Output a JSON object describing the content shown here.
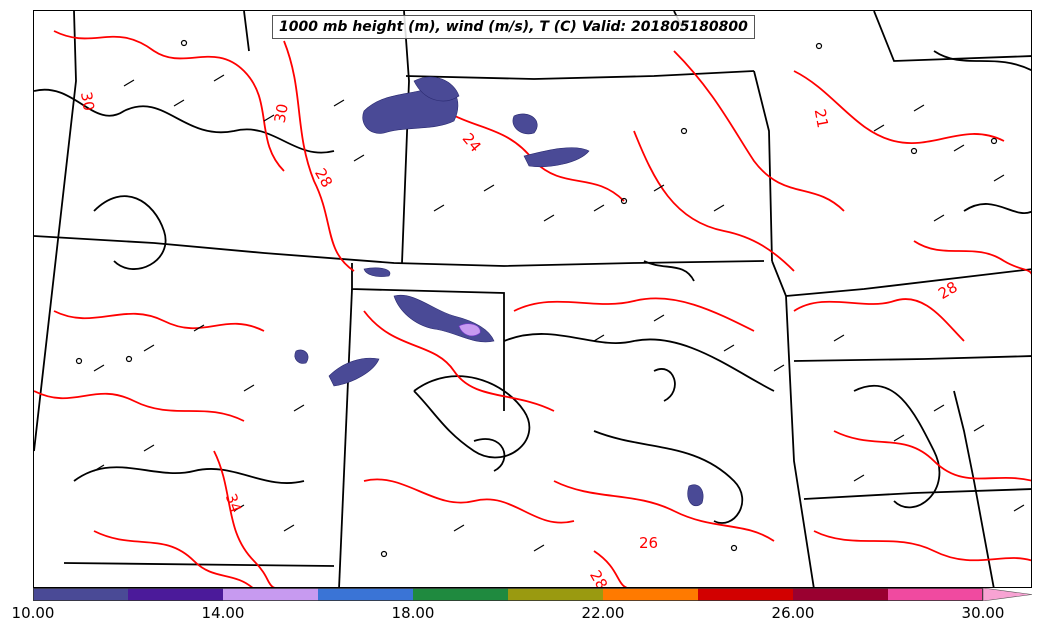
{
  "title": "1000 mb height (m), wind (m/s), T (C) Valid: 201805180800",
  "contour_labels": [
    "30",
    "30",
    "28",
    "24",
    "21",
    "28",
    "34",
    "26",
    "28"
  ],
  "colorbar": {
    "colors": [
      "#4a4a96",
      "#4b1a9a",
      "#c79af0",
      "#3a74d6",
      "#1f8a3f",
      "#9a9a10",
      "#ff7a00",
      "#d20000",
      "#9a0030",
      "#f04aa0",
      "#f7a3d3"
    ],
    "ticks": [
      "10.00",
      "14.00",
      "18.00",
      "22.00",
      "26.00",
      "30.00"
    ],
    "range": [
      10,
      32
    ],
    "bin_width": 2
  },
  "contour_colors": {
    "temperature": "#ff0000",
    "height": "#000000",
    "borders": "#000000"
  }
}
